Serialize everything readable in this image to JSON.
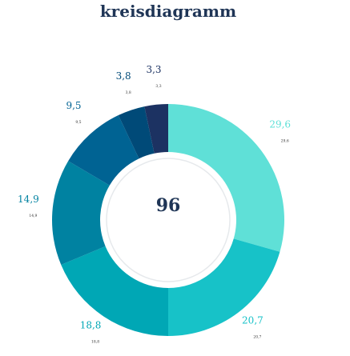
{
  "chart_data": {
    "type": "pie",
    "title": "kreisdiagramm",
    "center_label": "96",
    "slices": [
      {
        "label": "29,6",
        "value": 29.6,
        "color": "#5fe0d7"
      },
      {
        "label": "20,7",
        "value": 20.7,
        "color": "#17c2c8"
      },
      {
        "label": "18,8",
        "value": 18.8,
        "color": "#00a7b5"
      },
      {
        "label": "14,9",
        "value": 14.9,
        "color": "#0082a1"
      },
      {
        "label": "9,5",
        "value": 9.5,
        "color": "#006393"
      },
      {
        "label": "3,8",
        "value": 3.8,
        "color": "#004a78"
      },
      {
        "label": "3,3",
        "value": 3.3,
        "color": "#1c3262"
      }
    ],
    "legend": "none"
  }
}
